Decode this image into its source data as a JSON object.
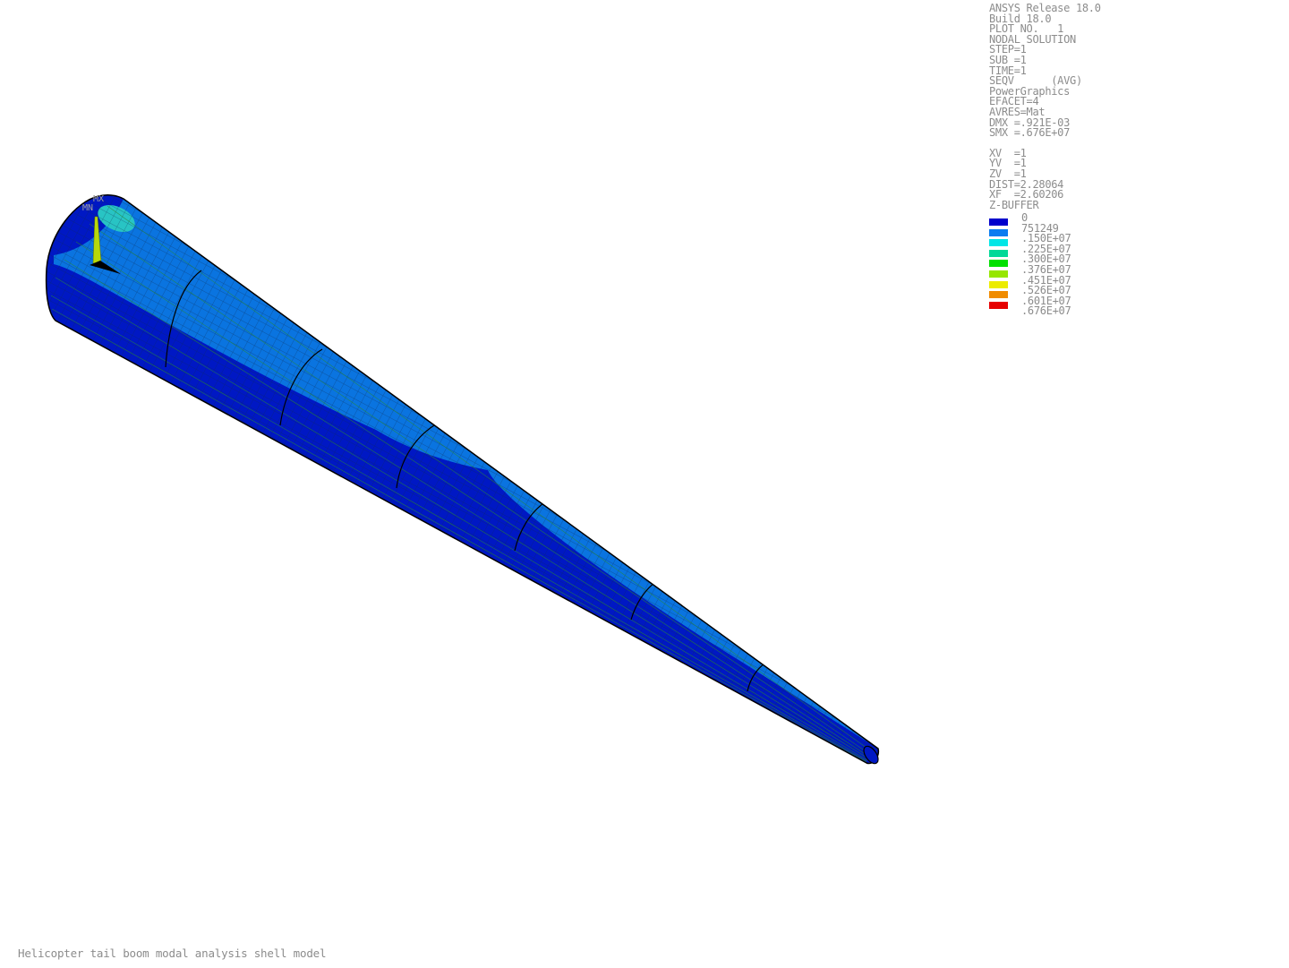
{
  "window": {
    "footer_title": "Helicopter tail boom modal analysis shell model"
  },
  "info": {
    "lines": [
      "ANSYS Release 18.0",
      "Build 18.0",
      "PLOT NO.   1",
      "NODAL SOLUTION",
      "STEP=1",
      "SUB =1",
      "TIME=1",
      "SEQV      (AVG)",
      "PowerGraphics",
      "EFACET=4",
      "AVRES=Mat",
      "DMX =.921E-03",
      "SMX =.676E+07"
    ],
    "view_lines": [
      "XV  =1",
      "YV  =1",
      "ZV  =1",
      "DIST=2.28064",
      "XF  =2.60206",
      "Z-BUFFER"
    ]
  },
  "legend": {
    "entries": [
      {
        "label": "0",
        "color": "#0000cc"
      },
      {
        "label": "751249",
        "color": "#0a7cf0"
      },
      {
        "label": ".150E+07",
        "color": "#00e6e6"
      },
      {
        "label": ".225E+07",
        "color": "#00d998"
      },
      {
        "label": ".300E+07",
        "color": "#00e000"
      },
      {
        "label": ".376E+07",
        "color": "#96e600"
      },
      {
        "label": ".451E+07",
        "color": "#ecec00"
      },
      {
        "label": ".526E+07",
        "color": "#f08c00"
      },
      {
        "label": ".601E+07",
        "color": "#e60000"
      }
    ],
    "trailing_label": ".676E+07"
  },
  "model": {
    "mx_marker": "MX",
    "mn_marker": "MN",
    "colors": {
      "body_dark": "#0010c8",
      "body_light": "#0a78e6",
      "hotspot": "#2ac8c8",
      "mesh": "#1a6b2a",
      "outline": "#000000"
    }
  }
}
